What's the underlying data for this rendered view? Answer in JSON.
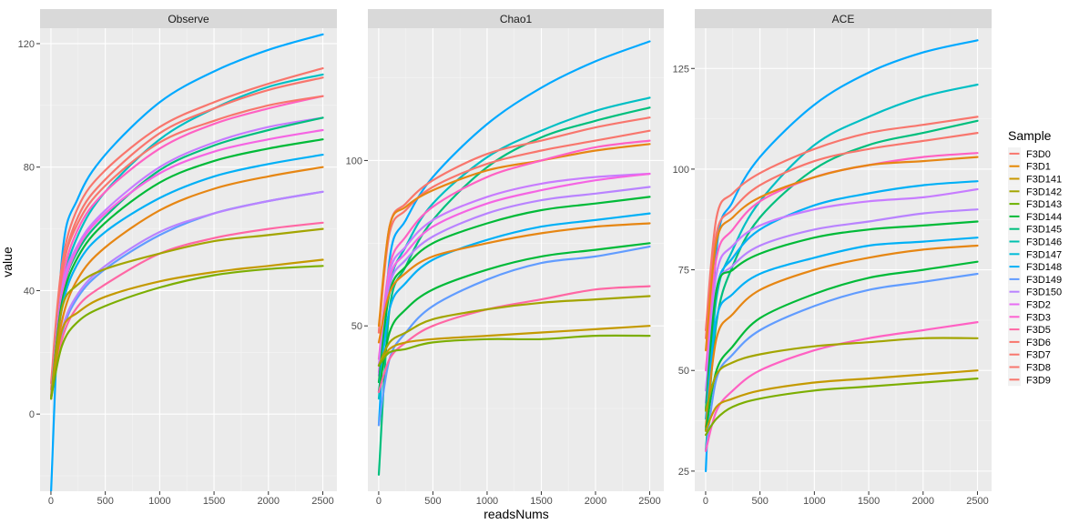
{
  "chart_data": {
    "type": "line",
    "xlabel": "readsNums",
    "ylabel": "value",
    "legend_title": "Sample",
    "legend_position": "right",
    "grid": true,
    "x_ticks": [
      0,
      500,
      1000,
      1500,
      2000,
      2500
    ],
    "series_styles": [
      {
        "name": "F3D0",
        "color": "#F8766D"
      },
      {
        "name": "F3D1",
        "color": "#E58700"
      },
      {
        "name": "F3D141",
        "color": "#C99800"
      },
      {
        "name": "F3D142",
        "color": "#A3A500"
      },
      {
        "name": "F3D143",
        "color": "#6BB100"
      },
      {
        "name": "F3D144",
        "color": "#00BA38"
      },
      {
        "name": "F3D145",
        "color": "#00BF7D"
      },
      {
        "name": "F3D146",
        "color": "#00C0AF"
      },
      {
        "name": "F3D147",
        "color": "#00BCD8"
      },
      {
        "name": "F3D148",
        "color": "#00B0F6"
      },
      {
        "name": "F3D149",
        "color": "#619CFF"
      },
      {
        "name": "F3D150",
        "color": "#B983FF"
      },
      {
        "name": "F3D2",
        "color": "#E76BF3"
      },
      {
        "name": "F3D3",
        "color": "#FD61D1"
      },
      {
        "name": "F3D5",
        "color": "#FF67A4"
      },
      {
        "name": "F3D6",
        "color": "#F8766D"
      },
      {
        "name": "F3D7",
        "color": "#F8766D"
      },
      {
        "name": "F3D8",
        "color": "#F8766D"
      },
      {
        "name": "F3D9",
        "color": "#F8766D"
      }
    ],
    "panels": [
      {
        "title": "Observe",
        "x": [
          1,
          100,
          250,
          500,
          1000,
          1500,
          2000,
          2500
        ],
        "ylim": [
          -25,
          125
        ],
        "y_ticks": [
          0,
          40,
          80,
          120
        ],
        "series": [
          {
            "color": "#00A9FF",
            "values": [
              -25,
              50,
              70,
              84,
              101,
              111,
              118,
              123
            ]
          },
          {
            "color": "#F8766D",
            "values": [
              10,
              48,
              67,
              79,
              93,
              101,
              107,
              112
            ]
          },
          {
            "color": "#00BFC4",
            "values": [
              5,
              40,
              58,
              72,
              89,
              99,
              106,
              110
            ]
          },
          {
            "color": "#F8766D",
            "values": [
              8,
              45,
              64,
              76,
              91,
              99,
              105,
              109
            ]
          },
          {
            "color": "#FF61C3",
            "values": [
              6,
              42,
              60,
              72,
              86,
              94,
              99,
              103
            ]
          },
          {
            "color": "#F8766D",
            "values": [
              5,
              45,
              62,
              74,
              88,
              95,
              100,
              103
            ]
          },
          {
            "color": "#C77CFF",
            "values": [
              5,
              40,
              55,
              66,
              80,
              88,
              93,
              96
            ]
          },
          {
            "color": "#00BF7D",
            "values": [
              5,
              38,
              53,
              64,
              79,
              87,
              92,
              96
            ]
          },
          {
            "color": "#F564E3",
            "values": [
              5,
              38,
              54,
              65,
              78,
              85,
              89,
              92
            ]
          },
          {
            "color": "#00BA38",
            "values": [
              5,
              36,
              51,
              62,
              75,
              82,
              86,
              89
            ]
          },
          {
            "color": "#00B0F6",
            "values": [
              5,
              34,
              49,
              59,
              70,
              77,
              81,
              84
            ]
          },
          {
            "color": "#E68613",
            "values": [
              5,
              30,
              44,
              54,
              66,
              73,
              77,
              80
            ]
          },
          {
            "color": "#619CFF",
            "values": [
              5,
              26,
              38,
              47,
              58,
              65,
              69,
              72
            ]
          },
          {
            "color": "#B983FF",
            "values": [
              5,
              27,
              39,
              48,
              59,
              65,
              69,
              72
            ]
          },
          {
            "color": "#FF67A4",
            "values": [
              5,
              24,
              35,
              42,
              52,
              57,
              60,
              62
            ]
          },
          {
            "color": "#A3A500",
            "values": [
              5,
              34,
              42,
              47,
              52,
              56,
              58,
              60
            ]
          },
          {
            "color": "#C49A00",
            "values": [
              5,
              27,
              33,
              38,
              43,
              46,
              48,
              50
            ]
          },
          {
            "color": "#7CAE00",
            "values": [
              5,
              22,
              30,
              35,
              41,
              45,
              47,
              48
            ]
          }
        ]
      },
      {
        "title": "Chao1",
        "x": [
          1,
          100,
          250,
          500,
          1000,
          1500,
          2000,
          2500
        ],
        "ylim": [
          0,
          140
        ],
        "y_ticks": [
          50,
          100
        ],
        "series": [
          {
            "color": "#00A9FF",
            "values": [
              20,
              70,
              82,
              95,
              111,
              122,
              130,
              136
            ]
          },
          {
            "color": "#00BFC4",
            "values": [
              28,
              62,
              74,
              87,
              101,
              109,
              115,
              119
            ]
          },
          {
            "color": "#00BF7D",
            "values": [
              5,
              55,
              68,
              82,
              98,
              107,
              112,
              116
            ]
          },
          {
            "color": "#F8766D",
            "values": [
              48,
              80,
              87,
              94,
              102,
              106,
              110,
              113
            ]
          },
          {
            "color": "#F8766D",
            "values": [
              48,
              78,
              85,
              92,
              99,
              103,
              106,
              109
            ]
          },
          {
            "color": "#E68613",
            "values": [
              50,
              80,
              86,
              91,
              97,
              100,
              103,
              105
            ]
          },
          {
            "color": "#FF61C3",
            "values": [
              40,
              68,
              77,
              86,
              95,
              100,
              104,
              106
            ]
          },
          {
            "color": "#C77CFF",
            "values": [
              38,
              66,
              74,
              82,
              89,
              93,
              95,
              96
            ]
          },
          {
            "color": "#F564E3",
            "values": [
              36,
              64,
              72,
              80,
              87,
              91,
              94,
              96
            ]
          },
          {
            "color": "#B983FF",
            "values": [
              35,
              62,
              70,
              77,
              84,
              88,
              90,
              92
            ]
          },
          {
            "color": "#00BA38",
            "values": [
              33,
              60,
              68,
              75,
              81,
              85,
              87,
              89
            ]
          },
          {
            "color": "#00B0F6",
            "values": [
              30,
              55,
              63,
              70,
              76,
              80,
              82,
              84
            ]
          },
          {
            "color": "#E68613",
            "values": [
              45,
              60,
              66,
              71,
              75,
              78,
              80,
              81
            ]
          },
          {
            "color": "#00BA38",
            "values": [
              30,
              48,
              55,
              61,
              67,
              71,
              73,
              75
            ]
          },
          {
            "color": "#619CFF",
            "values": [
              20,
              40,
              48,
              56,
              64,
              69,
              71,
              74
            ]
          },
          {
            "color": "#FF67A4",
            "values": [
              30,
              40,
              45,
              50,
              55,
              58,
              61,
              62
            ]
          },
          {
            "color": "#A3A500",
            "values": [
              38,
              45,
              48,
              52,
              55,
              57,
              58,
              59
            ]
          },
          {
            "color": "#C49A00",
            "values": [
              38,
              43,
              45,
              46,
              47,
              48,
              49,
              50
            ]
          },
          {
            "color": "#7CAE00",
            "values": [
              38,
              42,
              43,
              45,
              46,
              46,
              47,
              47
            ]
          }
        ]
      },
      {
        "title": "ACE",
        "x": [
          1,
          100,
          250,
          500,
          1000,
          1500,
          2000,
          2500
        ],
        "ylim": [
          20,
          135
        ],
        "y_ticks": [
          25,
          50,
          75,
          100,
          125
        ],
        "series": [
          {
            "color": "#00A9FF",
            "values": [
              25,
              80,
              92,
              103,
              116,
              124,
              129,
              132
            ]
          },
          {
            "color": "#00BFC4",
            "values": [
              35,
              68,
              80,
              92,
              106,
              113,
              118,
              121
            ]
          },
          {
            "color": "#F8766D",
            "values": [
              60,
              88,
              94,
              99,
              105,
              109,
              111,
              113
            ]
          },
          {
            "color": "#00BF7D",
            "values": [
              30,
              62,
              76,
              88,
              100,
              106,
              109,
              112
            ]
          },
          {
            "color": "#F8766D",
            "values": [
              58,
              84,
              90,
              96,
              102,
              105,
              107,
              109
            ]
          },
          {
            "color": "#FF61C3",
            "values": [
              50,
              78,
              85,
              92,
              98,
              101,
              103,
              104
            ]
          },
          {
            "color": "#E68613",
            "values": [
              55,
              82,
              88,
              93,
              98,
              101,
              102,
              103
            ]
          },
          {
            "color": "#00B0F6",
            "values": [
              40,
              70,
              78,
              85,
              91,
              94,
              96,
              97
            ]
          },
          {
            "color": "#C77CFF",
            "values": [
              45,
              74,
              81,
              86,
              90,
              92,
              93,
              95
            ]
          },
          {
            "color": "#B983FF",
            "values": [
              42,
              70,
              76,
              81,
              85,
              87,
              89,
              90
            ]
          },
          {
            "color": "#00BA38",
            "values": [
              40,
              70,
              75,
              79,
              83,
              85,
              86,
              87
            ]
          },
          {
            "color": "#00B0F6",
            "values": [
              38,
              63,
              69,
              74,
              78,
              81,
              82,
              83
            ]
          },
          {
            "color": "#E68613",
            "values": [
              36,
              58,
              64,
              70,
              75,
              78,
              80,
              81
            ]
          },
          {
            "color": "#00BA38",
            "values": [
              35,
              50,
              56,
              63,
              69,
              73,
              75,
              77
            ]
          },
          {
            "color": "#619CFF",
            "values": [
              30,
              48,
              54,
              60,
              66,
              70,
              72,
              74
            ]
          },
          {
            "color": "#FF61C3",
            "values": [
              30,
              40,
              45,
              50,
              55,
              58,
              60,
              62
            ]
          },
          {
            "color": "#A3A500",
            "values": [
              40,
              49,
              52,
              54,
              56,
              57,
              58,
              58
            ]
          },
          {
            "color": "#C49A00",
            "values": [
              35,
              41,
              43,
              45,
              47,
              48,
              49,
              50
            ]
          },
          {
            "color": "#7CAE00",
            "values": [
              34,
              38,
              41,
              43,
              45,
              46,
              47,
              48
            ]
          }
        ]
      }
    ]
  }
}
